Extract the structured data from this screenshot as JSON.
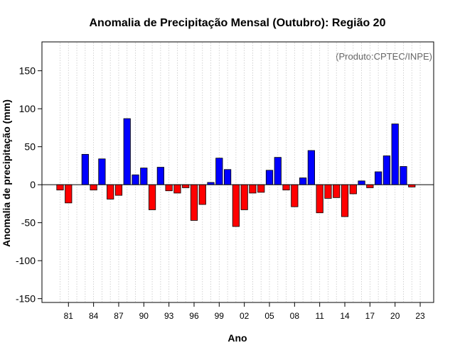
{
  "chart_data": {
    "type": "bar",
    "title": "Anomalia de Precipitação Mensal (Outubro): Região 20",
    "xlabel": "Ano",
    "ylabel": "Anomalia de precipitação (mm)",
    "annotation": "(Produto:CPTEC/INPE)",
    "ylim": [
      -155,
      188
    ],
    "yticks": [
      -150,
      -100,
      -50,
      0,
      50,
      100,
      150
    ],
    "xtick_labels": [
      "81",
      "84",
      "87",
      "90",
      "93",
      "96",
      "99",
      "02",
      "05",
      "08",
      "11",
      "14",
      "17",
      "20",
      "23"
    ],
    "positive_color": "#0000ff",
    "negative_color": "#ff0000",
    "grid": true,
    "categories": [
      "1980",
      "1981",
      "1982",
      "1983",
      "1984",
      "1985",
      "1986",
      "1987",
      "1988",
      "1989",
      "1990",
      "1991",
      "1992",
      "1993",
      "1994",
      "1995",
      "1996",
      "1997",
      "1998",
      "1999",
      "2000",
      "2001",
      "2002",
      "2003",
      "2004",
      "2005",
      "2006",
      "2007",
      "2008",
      "2009",
      "2010",
      "2011",
      "2012",
      "2013",
      "2014",
      "2015",
      "2016",
      "2017",
      "2018",
      "2019",
      "2020",
      "2021",
      "2022",
      "2023"
    ],
    "values": [
      -7,
      -24,
      0,
      40,
      -7,
      34,
      -19,
      -14,
      87,
      13,
      22,
      -33,
      23,
      -8,
      -11,
      -4,
      -47,
      -26,
      3,
      35,
      20,
      -55,
      -33,
      -11,
      -10,
      19,
      36,
      -7,
      -29,
      9,
      45,
      -37,
      -18,
      -17,
      -42,
      -12,
      5,
      -4,
      17,
      38,
      80,
      24,
      -3,
      0
    ]
  }
}
